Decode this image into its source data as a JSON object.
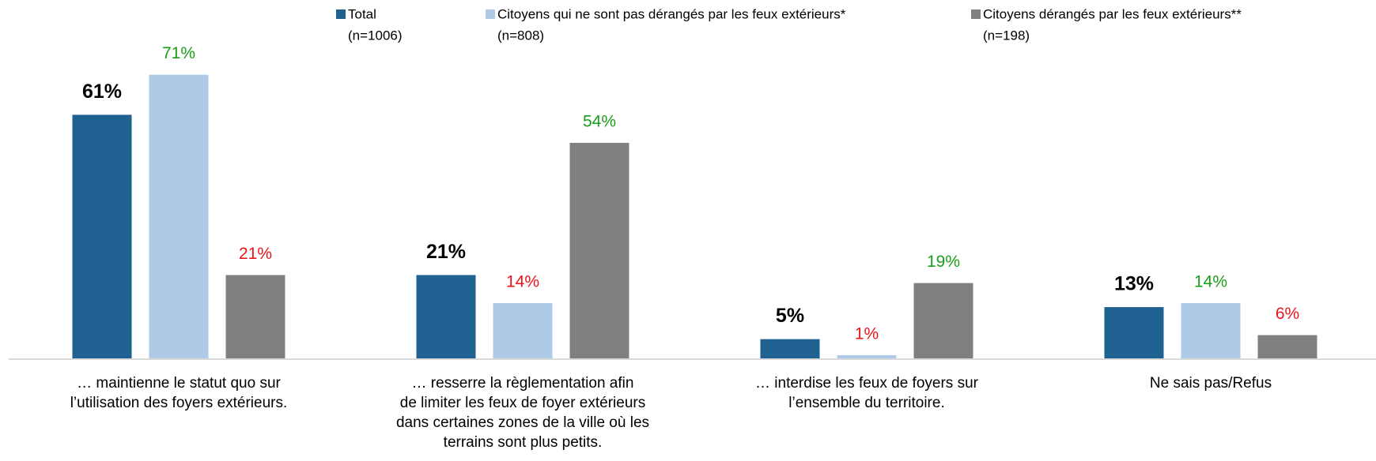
{
  "chart_data": {
    "type": "bar",
    "categories": [
      [
        "… maintienne le statut quo sur",
        "l’utilisation des foyers extérieurs."
      ],
      [
        "… resserre la règlementation afin",
        "de limiter les feux de foyer extérieurs",
        "dans certaines zones de la ville où les",
        "terrains sont plus petits."
      ],
      [
        "… interdise les feux de foyers sur",
        "l’ensemble du territoire."
      ],
      [
        "Ne sais pas/Refus"
      ]
    ],
    "series": [
      {
        "name": "Total",
        "sample": "(n=1006)",
        "color": "#1f6191",
        "label_color": [
          "#000000",
          "#000000",
          "#000000",
          "#000000"
        ],
        "bold": true,
        "values": [
          61,
          21,
          5,
          13
        ],
        "value_labels": [
          "61%",
          "21%",
          "5%",
          "13%"
        ]
      },
      {
        "name": "Citoyens qui ne sont pas dérangés par les feux extérieurs*",
        "sample": "(n=808)",
        "color": "#aecae6",
        "label_color": [
          "#1a9e1a",
          "#e8151b",
          "#e8151b",
          "#1a9e1a"
        ],
        "bold": false,
        "values": [
          71,
          14,
          1,
          14
        ],
        "value_labels": [
          "71%",
          "14%",
          "1%",
          "14%"
        ]
      },
      {
        "name": "Citoyens dérangés par les feux extérieurs**",
        "sample": "(n=198)",
        "color": "#808080",
        "label_color": [
          "#e8151b",
          "#1a9e1a",
          "#1a9e1a",
          "#e8151b"
        ],
        "bold": false,
        "values": [
          21,
          54,
          19,
          6
        ],
        "value_labels": [
          "21%",
          "54%",
          "19%",
          "6%"
        ]
      }
    ],
    "ylim": [
      0,
      80
    ],
    "grid": false
  }
}
